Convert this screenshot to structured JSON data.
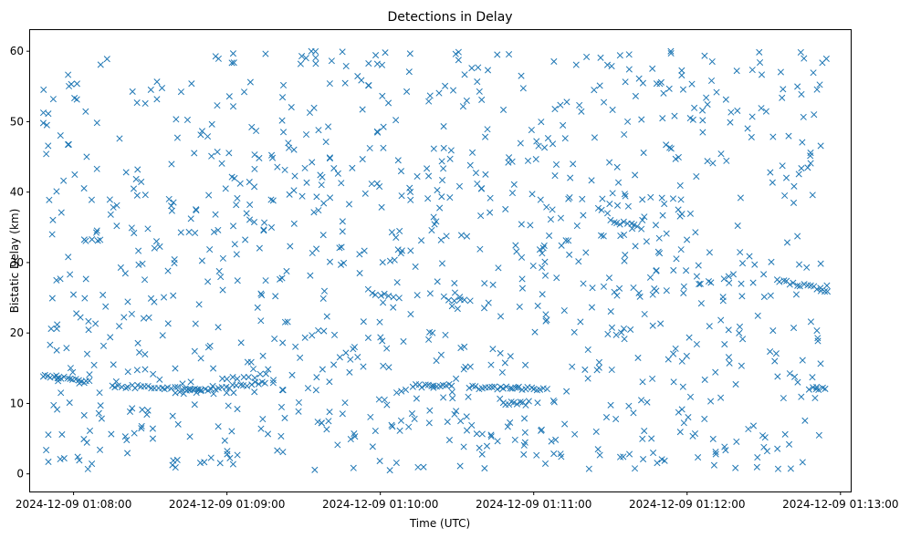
{
  "chart_data": {
    "type": "scatter",
    "title": "Detections in Delay",
    "xlabel": "Time (UTC)",
    "ylabel": "Bistatic Delay (km)",
    "marker": "x",
    "marker_color": "#1f77b4",
    "grid": false,
    "xlim": [
      "2024-12-09 01:07:43",
      "2024-12-09 01:13:04"
    ],
    "ylim": [
      -2.5,
      63
    ],
    "xticks": [
      "2024-12-09 01:08:00",
      "2024-12-09 01:09:00",
      "2024-12-09 01:10:00",
      "2024-12-09 01:11:00",
      "2024-12-09 01:12:00",
      "2024-12-09 01:13:00"
    ],
    "yticks": [
      0,
      10,
      20,
      30,
      40,
      50,
      60
    ],
    "tracks": [
      {
        "x_start": "2024-12-09 01:07:48",
        "x_end": "2024-12-09 01:08:06",
        "y_start": 14.0,
        "y_end": 13.0,
        "count": 18
      },
      {
        "x_start": "2024-12-09 01:08:15",
        "x_end": "2024-12-09 01:08:50",
        "y_start": 12.5,
        "y_end": 12.0,
        "count": 28
      },
      {
        "x_start": "2024-12-09 01:08:40",
        "x_end": "2024-12-09 01:09:15",
        "y_start": 11.5,
        "y_end": 13.0,
        "count": 26
      },
      {
        "x_start": "2024-12-09 01:09:00",
        "x_end": "2024-12-09 01:09:15",
        "y_start": 13.5,
        "y_end": 14.0,
        "count": 8
      },
      {
        "x_start": "2024-12-09 01:10:13",
        "x_end": "2024-12-09 01:10:28",
        "y_start": 12.5,
        "y_end": 12.5,
        "count": 14
      },
      {
        "x_start": "2024-12-09 01:10:35",
        "x_end": "2024-12-09 01:11:05",
        "y_start": 12.3,
        "y_end": 12.0,
        "count": 26
      },
      {
        "x_start": "2024-12-09 01:10:48",
        "x_end": "2024-12-09 01:10:57",
        "y_start": 10.0,
        "y_end": 10.0,
        "count": 9
      },
      {
        "x_start": "2024-12-09 01:11:30",
        "x_end": "2024-12-09 01:11:42",
        "y_start": 36.0,
        "y_end": 35.0,
        "count": 10
      },
      {
        "x_start": "2024-12-09 01:12:35",
        "x_end": "2024-12-09 01:12:55",
        "y_start": 27.5,
        "y_end": 26.0,
        "count": 16
      },
      {
        "x_start": "2024-12-09 01:12:48",
        "x_end": "2024-12-09 01:12:54",
        "y_start": 12.2,
        "y_end": 12.0,
        "count": 6
      },
      {
        "x_start": "2024-12-09 01:09:55",
        "x_end": "2024-12-09 01:10:05",
        "y_start": 26.0,
        "y_end": 25.0,
        "count": 7
      },
      {
        "x_start": "2024-12-09 01:10:25",
        "x_end": "2024-12-09 01:10:35",
        "y_start": 25.0,
        "y_end": 24.5,
        "count": 6
      }
    ],
    "clutter": {
      "x_range": [
        "2024-12-09 01:07:48",
        "2024-12-09 01:12:55"
      ],
      "y_range": [
        0.5,
        60
      ],
      "count": 1050,
      "seed": 20241209
    }
  }
}
